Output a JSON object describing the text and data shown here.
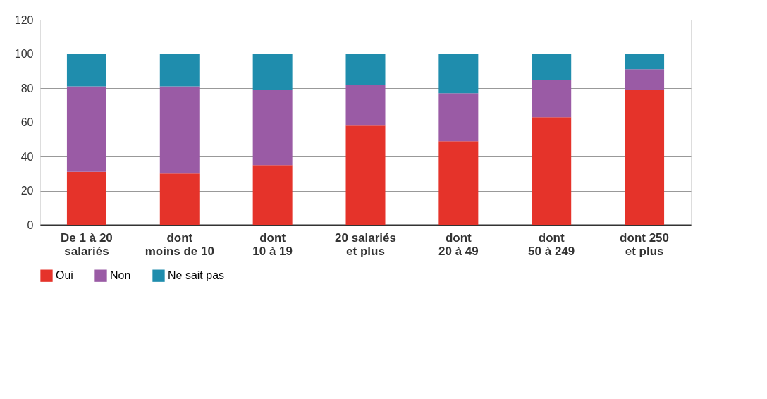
{
  "chart_data": {
    "type": "bar",
    "stacked": true,
    "categories": [
      "De 1 à 20\nsalariés",
      "dont\nmoins de 10",
      "dont\n10 à 19",
      "20 salariés\net plus",
      "dont\n20 à 49",
      "dont\n50 à 249",
      "dont 250\net plus"
    ],
    "series": [
      {
        "name": "Oui",
        "color": "#e5332a",
        "values": [
          31,
          30,
          35,
          58,
          49,
          63,
          79
        ]
      },
      {
        "name": "Non",
        "color": "#9a5ba5",
        "values": [
          50,
          51,
          44,
          24,
          28,
          22,
          12
        ]
      },
      {
        "name": "Ne sait pas",
        "color": "#1f8dad",
        "values": [
          19,
          19,
          21,
          18,
          23,
          15,
          9
        ]
      }
    ],
    "ylim": [
      0,
      120
    ],
    "yticks": [
      0,
      20,
      40,
      60,
      80,
      100,
      120
    ],
    "grid": "y",
    "legend": "bottom"
  }
}
